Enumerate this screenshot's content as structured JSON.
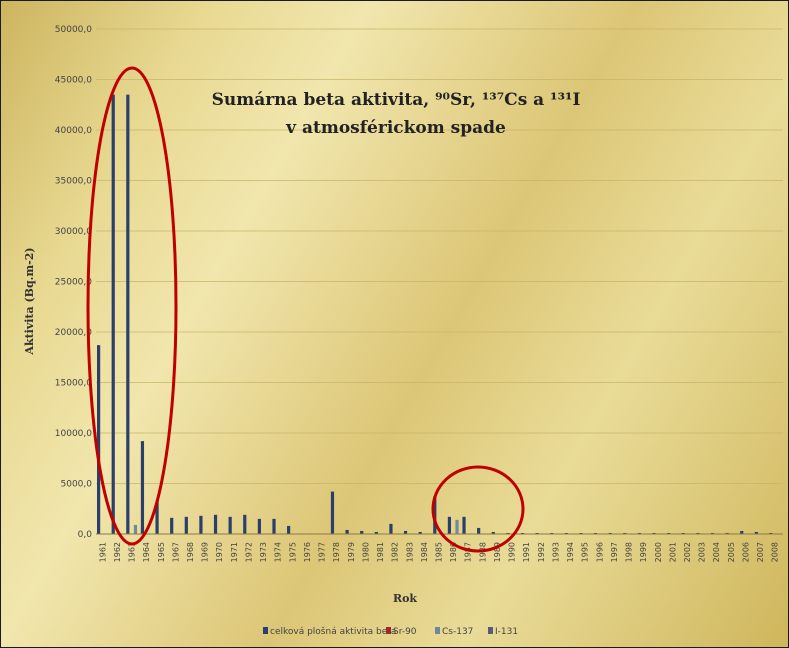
{
  "chart_data": {
    "type": "bar",
    "title_line1": "Sumárna beta aktivita, ⁹⁰Sr, ¹³⁷Cs a ¹³¹I",
    "title_line2": "v atmosférickom spade",
    "xlabel": "Rok",
    "ylabel": "Aktivita (Bq.m-2)",
    "ylim": [
      0,
      50000
    ],
    "yticks": [
      "0,0",
      "5000,0",
      "10000,0",
      "15000,0",
      "20000,0",
      "25000,0",
      "30000,0",
      "35000,0",
      "40000,0",
      "45000,0",
      "50000,0"
    ],
    "grid": true,
    "legend_position": "bottom",
    "categories": [
      "1961",
      "1962",
      "1963",
      "1964",
      "1965",
      "1967",
      "1968",
      "1969",
      "1970",
      "1971",
      "1972",
      "1973",
      "1974",
      "1975",
      "1976",
      "1977",
      "1978",
      "1979",
      "1980",
      "1981",
      "1982",
      "1983",
      "1984",
      "1985",
      "1986",
      "1987",
      "1988",
      "1989",
      "1990",
      "1991",
      "1992",
      "1993",
      "1994",
      "1995",
      "1996",
      "1997",
      "1998",
      "1999",
      "2000",
      "2001",
      "2002",
      "2003",
      "2004",
      "2005",
      "2006",
      "2007",
      "2008"
    ],
    "series": [
      {
        "name": "celková plošná aktivita beta",
        "color": "#2b3f6b",
        "values": [
          18700,
          43500,
          43500,
          9200,
          3300,
          1600,
          1700,
          1800,
          1900,
          1700,
          1900,
          1500,
          1500,
          800,
          0,
          0,
          4200,
          400,
          300,
          200,
          1000,
          300,
          200,
          3700,
          1700,
          1700,
          600,
          200,
          100,
          100,
          100,
          100,
          100,
          100,
          100,
          100,
          100,
          100,
          100,
          100,
          100,
          100,
          100,
          100,
          300,
          200,
          100
        ]
      },
      {
        "name": "Sr-90",
        "color": "#9b2a2a",
        "values": [
          0,
          0,
          0,
          0,
          0,
          0,
          0,
          0,
          0,
          0,
          0,
          0,
          0,
          0,
          0,
          0,
          0,
          0,
          0,
          0,
          0,
          0,
          0,
          0,
          0,
          0,
          0,
          0,
          0,
          0,
          0,
          0,
          0,
          0,
          0,
          0,
          0,
          0,
          0,
          0,
          0,
          0,
          0,
          0,
          0,
          0,
          0
        ]
      },
      {
        "name": "Cs-137",
        "color": "#6f8a9a",
        "values": [
          0,
          0,
          900,
          0,
          0,
          0,
          0,
          0,
          0,
          0,
          0,
          0,
          0,
          0,
          0,
          0,
          0,
          0,
          0,
          0,
          0,
          0,
          0,
          0,
          1400,
          0,
          0,
          0,
          0,
          0,
          0,
          0,
          0,
          0,
          0,
          0,
          0,
          0,
          0,
          0,
          0,
          0,
          0,
          0,
          0,
          0,
          0
        ]
      },
      {
        "name": "I-131",
        "color": "#5a5a7a",
        "values": [
          0,
          0,
          0,
          0,
          0,
          0,
          0,
          0,
          0,
          0,
          0,
          0,
          0,
          0,
          0,
          0,
          0,
          0,
          0,
          0,
          0,
          0,
          0,
          0,
          0,
          0,
          0,
          0,
          0,
          0,
          0,
          0,
          0,
          0,
          0,
          0,
          0,
          0,
          0,
          0,
          0,
          0,
          0,
          0,
          0,
          0,
          0
        ]
      }
    ]
  },
  "annotations": {
    "ellipse_color": "#c00000"
  }
}
